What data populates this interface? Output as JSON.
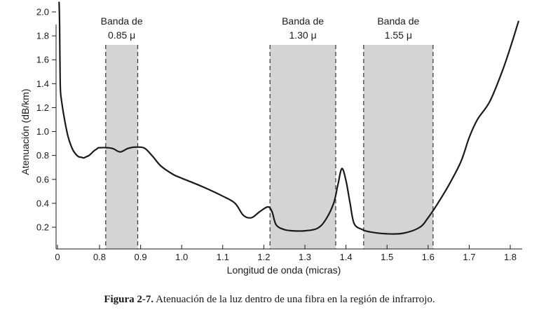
{
  "caption": {
    "label": "Figura 2-7.",
    "text": "Atenuación de la luz dentro de una fibra en la región de infrarrojo."
  },
  "chart_data": {
    "type": "line",
    "xlabel": "Longitud de onda (micras)",
    "ylabel": "Atenuación (dB/km)",
    "xlim": [
      0,
      1.82
    ],
    "ylim": [
      0,
      2.1
    ],
    "xticks": [
      "0",
      "0.8",
      "0.9",
      "1.0",
      "1.1",
      "1.2",
      "1.3",
      "1.4",
      "1.5",
      "1.6",
      "1.7",
      "1.8"
    ],
    "xtick_values": [
      0,
      0.8,
      0.9,
      1.0,
      1.1,
      1.2,
      1.3,
      1.4,
      1.5,
      1.6,
      1.7,
      1.8
    ],
    "yticks": [
      "0.2",
      "0.4",
      "0.6",
      "0.8",
      "1.0",
      "1.2",
      "1.4",
      "1.6",
      "1.8",
      "2.0"
    ],
    "ytick_values": [
      0.2,
      0.4,
      0.6,
      0.8,
      1.0,
      1.2,
      1.4,
      1.6,
      1.8,
      2.0
    ],
    "grid": false,
    "bands": [
      {
        "line1": "Banda de",
        "line2": "0.85 μ",
        "from": 0.815,
        "to": 0.893
      },
      {
        "line1": "Banda de",
        "line2": "1.30 μ",
        "from": 1.215,
        "to": 1.375
      },
      {
        "line1": "Banda de",
        "line2": "1.55 μ",
        "from": 1.443,
        "to": 1.612
      }
    ],
    "series": [
      {
        "x": [
          0.03,
          0.04,
          0.05,
          0.06,
          0.08,
          0.1,
          0.13,
          0.16,
          0.2,
          0.25,
          0.3,
          0.35,
          0.4,
          0.45,
          0.5,
          0.55,
          0.6,
          0.65,
          0.7,
          0.75,
          0.8,
          0.83,
          0.85,
          0.87,
          0.89,
          0.91,
          0.93,
          0.95,
          0.98,
          1.0,
          1.05,
          1.1,
          1.13,
          1.15,
          1.17,
          1.19,
          1.21,
          1.22,
          1.23,
          1.25,
          1.27,
          1.3,
          1.33,
          1.35,
          1.37,
          1.38,
          1.39,
          1.4,
          1.41,
          1.42,
          1.44,
          1.46,
          1.5,
          1.54,
          1.58,
          1.6,
          1.62,
          1.65,
          1.68,
          1.7,
          1.72,
          1.75,
          1.78,
          1.8,
          1.82
        ],
        "values": [
          2.08,
          1.9,
          1.45,
          1.32,
          1.25,
          1.19,
          1.11,
          1.04,
          0.96,
          0.89,
          0.84,
          0.81,
          0.79,
          0.785,
          0.78,
          0.79,
          0.8,
          0.82,
          0.84,
          0.855,
          0.865,
          0.86,
          0.83,
          0.86,
          0.87,
          0.86,
          0.79,
          0.71,
          0.64,
          0.61,
          0.54,
          0.46,
          0.4,
          0.3,
          0.28,
          0.33,
          0.37,
          0.33,
          0.22,
          0.18,
          0.17,
          0.17,
          0.19,
          0.26,
          0.4,
          0.55,
          0.69,
          0.59,
          0.4,
          0.23,
          0.18,
          0.16,
          0.145,
          0.15,
          0.2,
          0.28,
          0.38,
          0.55,
          0.75,
          0.95,
          1.1,
          1.25,
          1.5,
          1.7,
          1.92
        ]
      }
    ]
  }
}
